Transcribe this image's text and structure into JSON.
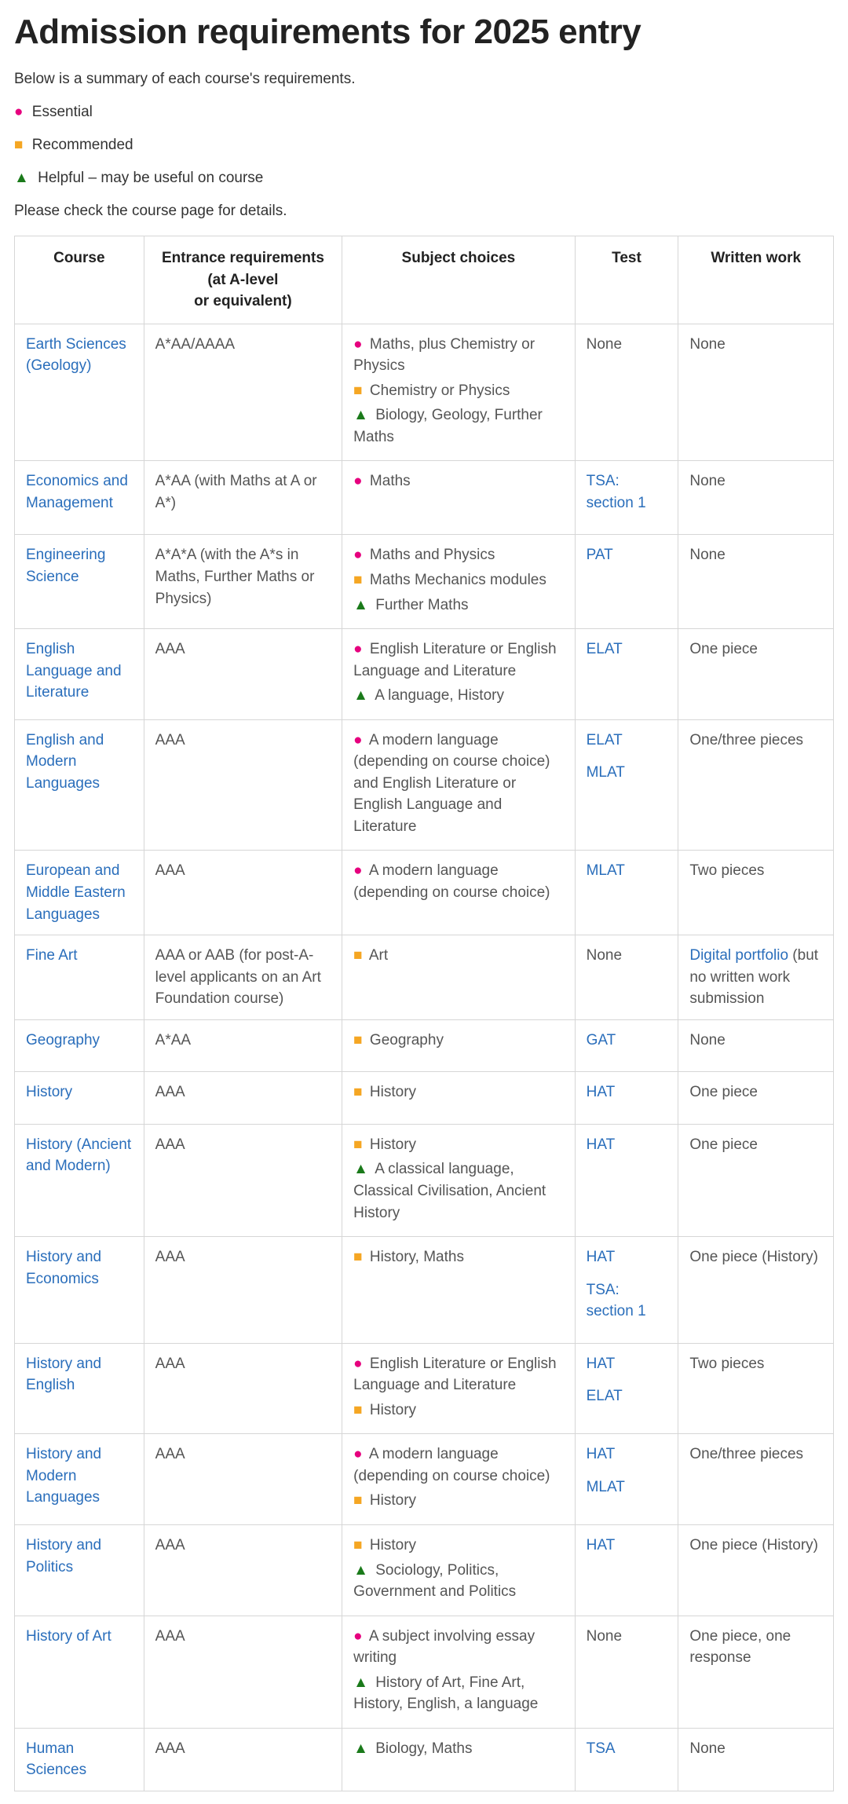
{
  "title": "Admission requirements for 2025 entry",
  "intro": "Below is a summary of each course's requirements.",
  "legend": {
    "essential": "Essential",
    "recommended": "Recommended",
    "helpful": "Helpful – may be useful on course"
  },
  "note": "Please check the course page for details.",
  "colors": {
    "essential": "#e6007e",
    "recommended": "#f5a623",
    "helpful": "#1a7a1a",
    "link": "#2a6ebb",
    "border": "#d6d6d6",
    "text": "#555555",
    "heading": "#222222"
  },
  "symbols": {
    "essential": "●",
    "recommended": "■",
    "helpful": "▲"
  },
  "columns": [
    "Course",
    "Entrance requirements (at A-level\nor equivalent)",
    "Subject choices",
    "Test",
    "Written work"
  ],
  "rows": [
    {
      "course": "Earth Sciences (Geology)",
      "requirements": "A*AA/AAAA",
      "subjects": [
        {
          "type": "essential",
          "text": "Maths, plus Chemistry or Physics"
        },
        {
          "type": "recommended",
          "text": "Chemistry or Physics"
        },
        {
          "type": "helpful",
          "text": "Biology, Geology, Further Maths"
        }
      ],
      "tests": [
        {
          "text": "None",
          "link": false
        }
      ],
      "written": [
        {
          "text": "None",
          "link": false
        }
      ]
    },
    {
      "course": "Economics and Management",
      "requirements": "A*AA (with Maths at A or A*)",
      "subjects": [
        {
          "type": "essential",
          "text": "Maths"
        }
      ],
      "tests": [
        {
          "text": "TSA: section 1",
          "link": true
        }
      ],
      "written": [
        {
          "text": " None",
          "link": false
        }
      ]
    },
    {
      "course": "Engineering Science",
      "requirements": "A*A*A (with the A*s in Maths, Further Maths or Physics)",
      "subjects": [
        {
          "type": "essential",
          "text": "Maths and Physics"
        },
        {
          "type": "recommended",
          "text": "Maths Mechanics modules"
        },
        {
          "type": "helpful",
          "text": "Further Maths"
        }
      ],
      "tests": [
        {
          "text": "PAT",
          "link": true
        }
      ],
      "written": [
        {
          "text": " None",
          "link": false
        }
      ]
    },
    {
      "course": "English Language and Literature",
      "requirements": "AAA",
      "subjects": [
        {
          "type": "essential",
          "text": "English Literature or English Language and Literature"
        },
        {
          "type": "helpful",
          "text": "A language, History"
        }
      ],
      "tests": [
        {
          "text": "ELAT",
          "link": true
        }
      ],
      "written": [
        {
          "text": "One piece",
          "link": false
        }
      ]
    },
    {
      "course": "English and Modern Languages",
      "requirements": "AAA",
      "subjects": [
        {
          "type": "essential",
          "text": "A modern language (depending on course choice) and English Literature or English Language and Literature"
        }
      ],
      "tests": [
        {
          "text": "ELAT",
          "link": true
        },
        {
          "text": "MLAT",
          "link": true
        }
      ],
      "written": [
        {
          "text": "One/three pieces",
          "link": false
        }
      ]
    },
    {
      "course": "European and Middle Eastern Languages",
      "requirements": "AAA",
      "subjects": [
        {
          "type": "essential",
          "text": "A modern language (depending on course choice)"
        }
      ],
      "tests": [
        {
          "text": "MLAT",
          "link": true
        }
      ],
      "written": [
        {
          "text": "Two pieces",
          "link": false
        }
      ]
    },
    {
      "course": "Fine Art",
      "requirements": "AAA or AAB (for post-A-level applicants on an Art Foundation course)",
      "subjects": [
        {
          "type": "recommended",
          "text": "Art"
        }
      ],
      "tests": [
        {
          "text": "None",
          "link": false
        }
      ],
      "written": [
        {
          "text": "Digital portfolio",
          "link": true
        },
        {
          "text": " (but no written work submission",
          "link": false,
          "inline": true
        }
      ]
    },
    {
      "course": "Geography",
      "requirements": "A*AA",
      "subjects": [
        {
          "type": "recommended",
          "text": "Geography"
        }
      ],
      "tests": [
        {
          "text": "GAT",
          "link": true
        }
      ],
      "written": [
        {
          "text": " None",
          "link": false
        }
      ]
    },
    {
      "course": "History",
      "requirements": "AAA",
      "subjects": [
        {
          "type": "recommended",
          "text": "History"
        }
      ],
      "tests": [
        {
          "text": "HAT",
          "link": true
        }
      ],
      "written": [
        {
          "text": "One piece",
          "link": false
        }
      ]
    },
    {
      "course": "History (Ancient and Modern)",
      "requirements": "AAA",
      "subjects": [
        {
          "type": "recommended",
          "text": "History"
        },
        {
          "type": "helpful",
          "text": "A classical language, Classical Civilisation, Ancient History"
        }
      ],
      "tests": [
        {
          "text": "HAT",
          "link": true
        }
      ],
      "written": [
        {
          "text": "One piece",
          "link": false
        }
      ]
    },
    {
      "course": "History and Economics",
      "requirements": "AAA",
      "subjects": [
        {
          "type": "recommended",
          "text": "History, Maths"
        }
      ],
      "tests": [
        {
          "text": "HAT",
          "link": true
        },
        {
          "text": "TSA: section 1",
          "link": true
        }
      ],
      "written": [
        {
          "text": "One piece (History)",
          "link": false
        }
      ]
    },
    {
      "course": "History and English",
      "requirements": "AAA",
      "subjects": [
        {
          "type": "essential",
          "text": "English Literature or English Language and Literature"
        },
        {
          "type": "recommended",
          "text": "History"
        }
      ],
      "tests": [
        {
          "text": "HAT",
          "link": true
        },
        {
          "text": "ELAT",
          "link": true
        }
      ],
      "written": [
        {
          "text": "Two pieces",
          "link": false
        }
      ]
    },
    {
      "course": "History and Modern Languages",
      "requirements": "AAA",
      "subjects": [
        {
          "type": "essential",
          "text": "A modern language (depending on course choice)"
        },
        {
          "type": "recommended",
          "text": "History"
        }
      ],
      "tests": [
        {
          "text": "HAT",
          "link": true
        },
        {
          "text": "MLAT",
          "link": true
        }
      ],
      "written": [
        {
          "text": "One/three pieces",
          "link": false
        }
      ]
    },
    {
      "course": "History and Politics",
      "requirements": "AAA",
      "subjects": [
        {
          "type": "recommended",
          "text": "History"
        },
        {
          "type": "helpful",
          "text": "Sociology, Politics, Government and Politics"
        }
      ],
      "tests": [
        {
          "text": "HAT",
          "link": true
        }
      ],
      "written": [
        {
          "text": "One piece (History)",
          "link": false
        }
      ]
    },
    {
      "course": "History of Art",
      "requirements": "AAA",
      "subjects": [
        {
          "type": "essential",
          "text": "A subject involving essay writing"
        },
        {
          "type": "helpful",
          "text": "History of Art, Fine Art, History, English, a language"
        }
      ],
      "tests": [
        {
          "text": "None",
          "link": false
        }
      ],
      "written": [
        {
          "text": "One piece, one response",
          "link": false
        }
      ]
    },
    {
      "course": "Human Sciences",
      "requirements": "AAA",
      "subjects": [
        {
          "type": "helpful",
          "text": "Biology, Maths"
        }
      ],
      "tests": [
        {
          "text": "TSA",
          "link": true
        }
      ],
      "written": [
        {
          "text": " None",
          "link": false
        }
      ]
    }
  ]
}
